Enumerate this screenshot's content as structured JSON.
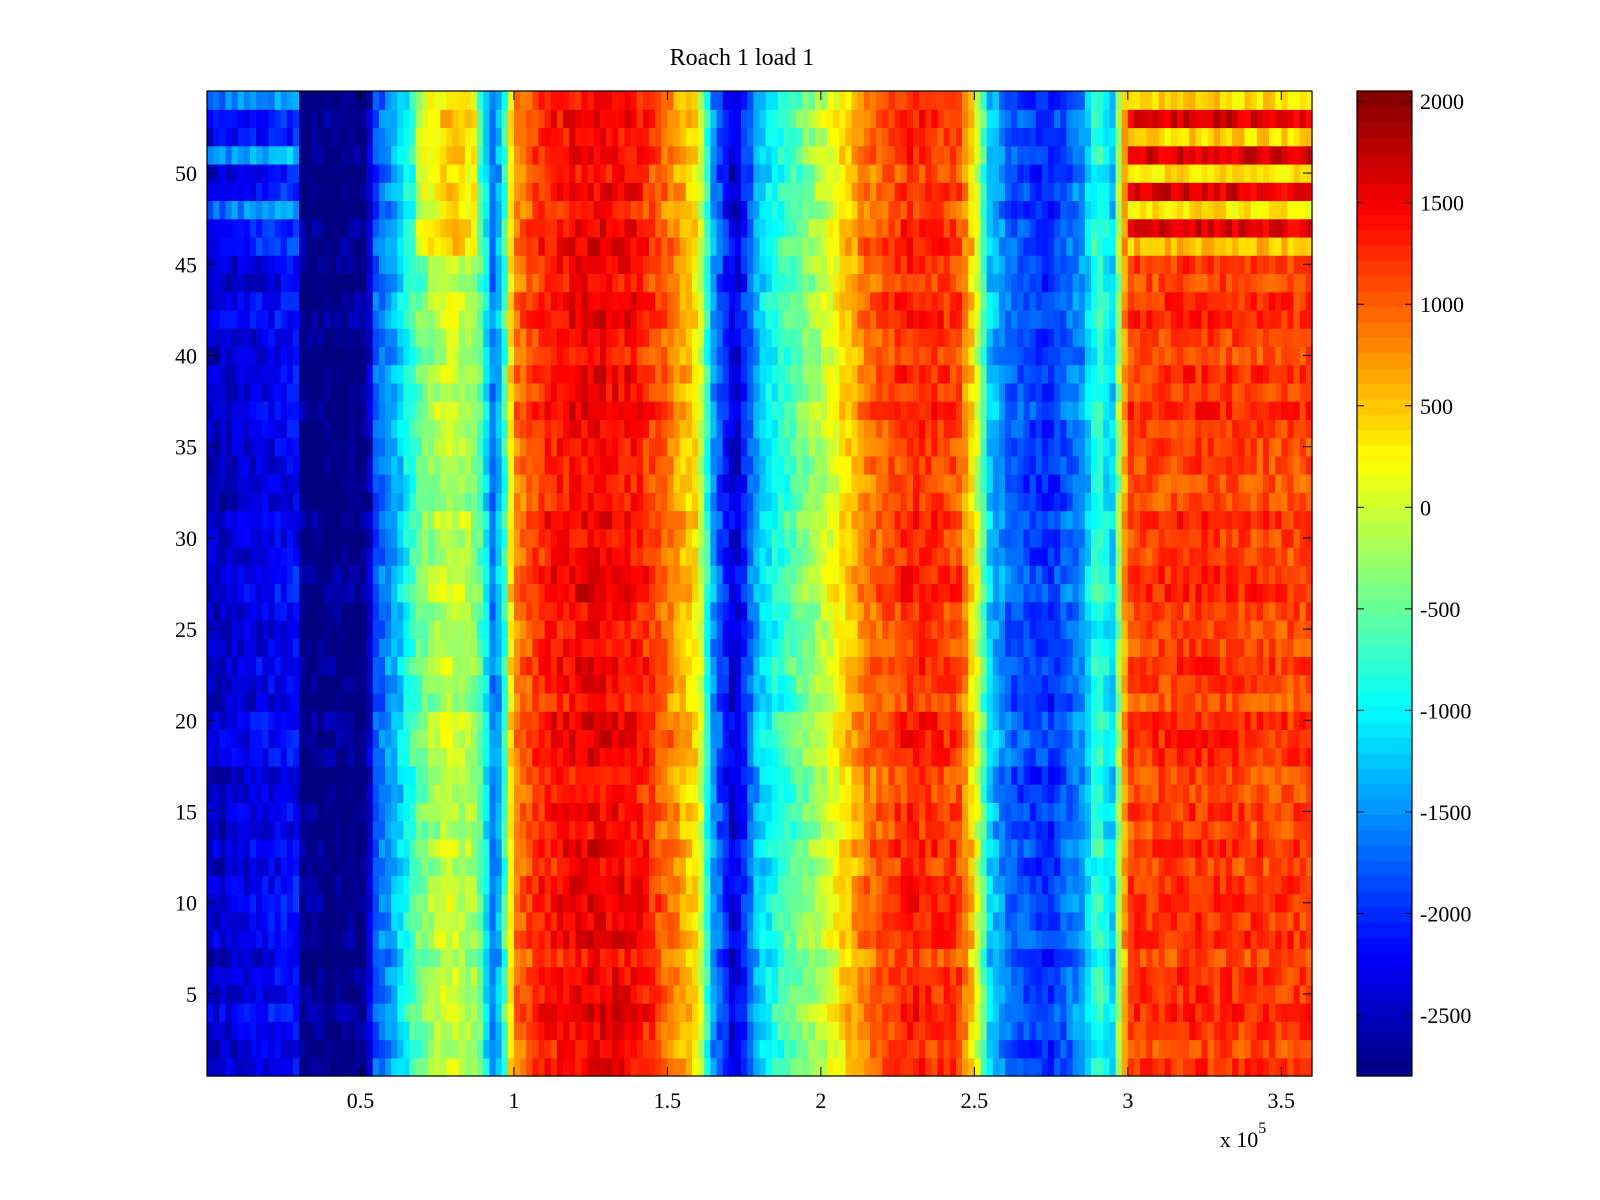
{
  "chart_data": {
    "type": "heatmap",
    "title": "Roach 1 load 1",
    "xlabel": "",
    "ylabel": "",
    "x_multiplier_label": {
      "base": "x 10",
      "exponent": "5"
    },
    "xlim": [
      0,
      3.6
    ],
    "ylim": [
      0.5,
      54.5
    ],
    "x_ticks": [
      0.5,
      1,
      1.5,
      2,
      2.5,
      3,
      3.5
    ],
    "x_tick_labels": [
      "0.5",
      "1",
      "1.5",
      "2",
      "2.5",
      "3",
      "3.5"
    ],
    "y_ticks": [
      5,
      10,
      15,
      20,
      25,
      30,
      35,
      40,
      45,
      50
    ],
    "y_tick_labels": [
      "5",
      "10",
      "15",
      "20",
      "25",
      "30",
      "35",
      "40",
      "45",
      "50"
    ],
    "rows": 54,
    "colormap": "jet",
    "colorbar": {
      "clim": [
        -2800,
        2050
      ],
      "ticks": [
        2000,
        1500,
        1000,
        500,
        0,
        -500,
        -1000,
        -1500,
        -2000,
        -2500
      ],
      "tick_labels": [
        "2000",
        "1500",
        "1000",
        "500",
        "0",
        "-500",
        "-1000",
        "-1500",
        "-2000",
        "-2500"
      ]
    },
    "column_profile": {
      "unit_note": "x in units of 10^5 samples; value in colorbar units",
      "x": [
        0.0,
        0.18,
        0.29,
        0.31,
        0.52,
        0.55,
        0.62,
        0.68,
        0.78,
        0.88,
        0.93,
        0.96,
        1.0,
        1.1,
        1.25,
        1.4,
        1.52,
        1.6,
        1.65,
        1.72,
        1.8,
        1.87,
        1.95,
        2.05,
        2.15,
        2.3,
        2.45,
        2.5,
        2.55,
        2.62,
        2.75,
        2.85,
        2.9,
        2.95,
        3.0,
        3.2,
        3.6
      ],
      "value": [
        -2500,
        -2300,
        -2200,
        -2800,
        -2800,
        -1800,
        -1300,
        -600,
        0,
        -300,
        -1600,
        -1200,
        800,
        1300,
        1500,
        1400,
        800,
        300,
        -1500,
        -2500,
        -1200,
        -800,
        -400,
        200,
        900,
        1300,
        1100,
        300,
        -1200,
        -1800,
        -2000,
        -1500,
        -700,
        -1200,
        1100,
        1200,
        1100
      ]
    },
    "row_bands": {
      "description": "rows whose colors differ from the column profile (upper rows)",
      "top_rows_range": [
        46,
        54
      ],
      "notes": "rows 46-54 show bright yellow/cool bands around x=0.7 and x=3.0-3.6"
    }
  }
}
